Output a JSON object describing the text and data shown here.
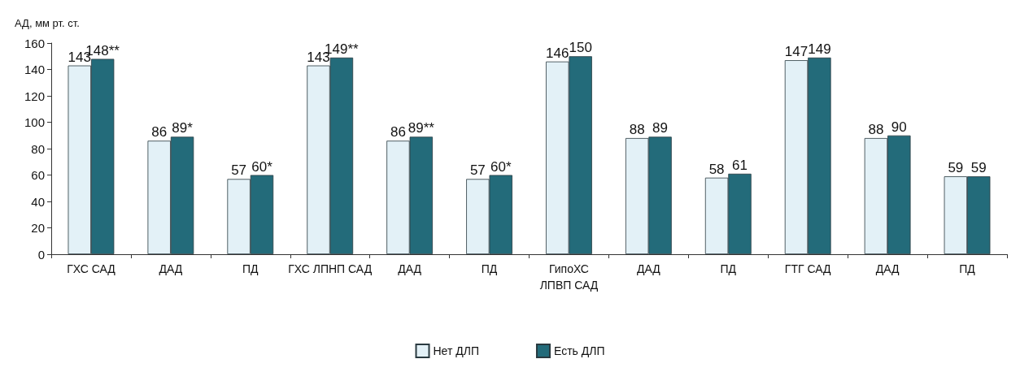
{
  "chart_data": {
    "type": "bar",
    "ylabel": "АД, мм рт. ст.",
    "categories": [
      "ГХС САД",
      "ДАД",
      "ПД",
      "ГХС ЛПНП САД",
      "ДАД",
      "ПД",
      "ГипоХС\nЛПВП САД",
      "ДАД",
      "ПД",
      "ГТГ САД",
      "ДАД",
      "ПД"
    ],
    "series": [
      {
        "name": "Нет ДЛП",
        "color": "#e3f1f7",
        "values": [
          143,
          86,
          57,
          143,
          86,
          57,
          146,
          88,
          58,
          147,
          88,
          59
        ],
        "value_labels": [
          "143",
          "86",
          "57",
          "143",
          "86",
          "57",
          "146",
          "88",
          "58",
          "147",
          "88",
          "59"
        ]
      },
      {
        "name": "Есть ДЛП",
        "color": "#236b7a",
        "values": [
          148,
          89,
          60,
          149,
          89,
          60,
          150,
          89,
          61,
          149,
          90,
          59
        ],
        "value_labels": [
          "148**",
          "89*",
          "60*",
          "149**",
          "89**",
          "60*",
          "150",
          "89",
          "61",
          "149",
          "90",
          "59"
        ]
      }
    ],
    "ylim": [
      0,
      160
    ],
    "yticks": [
      0,
      20,
      40,
      60,
      80,
      100,
      120,
      140,
      160
    ],
    "grid": false,
    "legend": "bottom"
  }
}
